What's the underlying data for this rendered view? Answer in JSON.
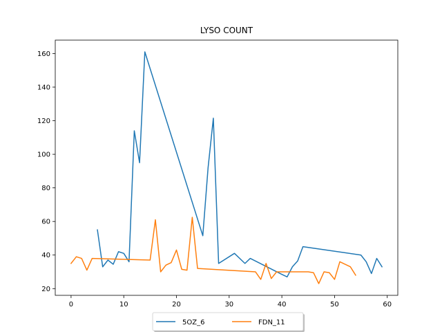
{
  "chart_data": {
    "type": "line",
    "title": "LYSO COUNT",
    "xlabel": "",
    "ylabel": "",
    "xlim": [
      -3.0,
      62.0
    ],
    "ylim": [
      16.0,
      168.0
    ],
    "xticks": [
      0,
      10,
      20,
      30,
      40,
      50,
      60
    ],
    "yticks": [
      20,
      40,
      60,
      80,
      100,
      120,
      140,
      160
    ],
    "grid": false,
    "legend_placement": "bottom-center",
    "series": [
      {
        "name": "5OZ_6",
        "color": "#1f77b4",
        "x": [
          5,
          6,
          7,
          8,
          9,
          10,
          11,
          12,
          13,
          14,
          25,
          26,
          27,
          28,
          31,
          33,
          34,
          40,
          41,
          42,
          43,
          44,
          55,
          56,
          57,
          58,
          59
        ],
        "y": [
          55,
          33,
          37,
          34.5,
          42,
          41,
          36,
          114,
          95,
          161,
          51.5,
          92,
          121.5,
          35,
          41,
          35,
          38,
          28.5,
          27,
          33,
          36.5,
          45,
          40,
          36,
          29,
          38,
          33
        ]
      },
      {
        "name": "FDN_11",
        "color": "#ff7f0e",
        "x": [
          0,
          1,
          2,
          3,
          4,
          15,
          16,
          17,
          18,
          19,
          20,
          21,
          22,
          23,
          24,
          35,
          36,
          37,
          38,
          39,
          40,
          41,
          45,
          46,
          47,
          48,
          49,
          50,
          51,
          53,
          54
        ],
        "y": [
          35,
          39,
          38,
          31,
          38,
          37,
          61,
          30,
          34,
          35.5,
          43,
          31.5,
          31,
          62.5,
          32,
          30,
          25.5,
          35,
          26,
          30,
          30,
          30,
          30,
          29.5,
          23,
          30,
          29.5,
          25.5,
          36,
          33,
          28
        ]
      }
    ]
  }
}
